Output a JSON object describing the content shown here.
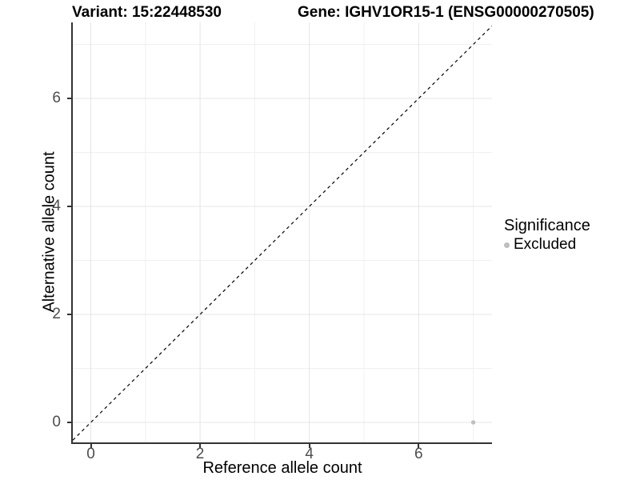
{
  "figure": {
    "title_left": "Variant: 15:22448530",
    "title_right": "Gene: IGHV1OR15-1 (ENSG00000270505)"
  },
  "chart_data": {
    "type": "scatter",
    "title": "Variant: 15:22448530",
    "subtitle": "Gene: IGHV1OR15-1 (ENSG00000270505)",
    "xlabel": "Reference allele count",
    "ylabel": "Alternative allele count",
    "x_ticks": [
      0,
      2,
      4,
      6
    ],
    "y_ticks": [
      0,
      2,
      4,
      6
    ],
    "x_minor_ticks": [
      1,
      3,
      5,
      7
    ],
    "y_minor_ticks": [
      1,
      3,
      5,
      7
    ],
    "xlim": [
      -0.33,
      7.34
    ],
    "ylim": [
      -0.37,
      7.41
    ],
    "grid": "on",
    "points": [
      {
        "x": 7,
        "y": 0,
        "series": "Excluded"
      }
    ],
    "reference_line": {
      "kind": "abline",
      "slope": 1,
      "intercept": 0,
      "style": "dashed",
      "color": "#000000"
    },
    "legend": {
      "title": "Significance",
      "position": "right",
      "entries": [
        {
          "label": "Excluded",
          "color": "#bebebe"
        }
      ]
    },
    "colors": {
      "background": "#ffffff",
      "grid_major": "#e4e4e4",
      "grid_minor": "#f0f0f0",
      "axis_line": "#333333",
      "tick_mark": "#333333",
      "tick_label": "#4d4d4d",
      "point": "#bebebe"
    }
  }
}
